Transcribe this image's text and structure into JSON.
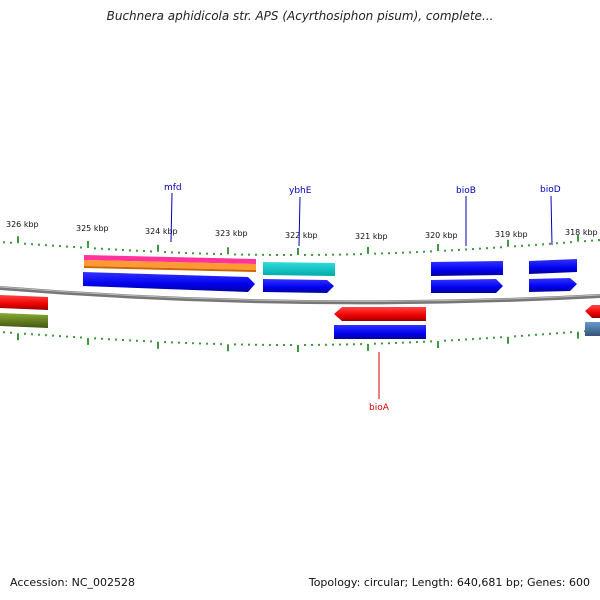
{
  "title": "Buchnera aphidicola str. APS (Acyrthosiphon pisum), complete...",
  "ticks": [
    "326 kbp",
    "325 kbp",
    "324 kbp",
    "323 kbp",
    "322 kbp",
    "321 kbp",
    "320 kbp",
    "319 kbp",
    "318 kbp"
  ],
  "genes": [
    {
      "name": "mfd",
      "strand": "forward",
      "color": "#0000bb"
    },
    {
      "name": "ybhE",
      "strand": "forward",
      "color": "#0000bb"
    },
    {
      "name": "bioB",
      "strand": "forward",
      "color": "#0000bb"
    },
    {
      "name": "bioD",
      "strand": "forward",
      "color": "#0000bb"
    },
    {
      "name": "bioA",
      "strand": "reverse",
      "color": "#dd0000"
    }
  ],
  "feature_colors": {
    "cds": "#0000ee",
    "gene_forward": "#ff0000",
    "misc_pink": "#ff3399",
    "misc_orange": "#ff9933",
    "misc_cyan": "#00cccc",
    "misc_olive": "#668822",
    "misc_steel": "#4477aa",
    "ticks": "#007700",
    "backbone": "#888888"
  },
  "footer": {
    "accession": "Accession: NC_002528",
    "summary": "Topology: circular; Length: 640,681 bp; Genes: 600"
  }
}
